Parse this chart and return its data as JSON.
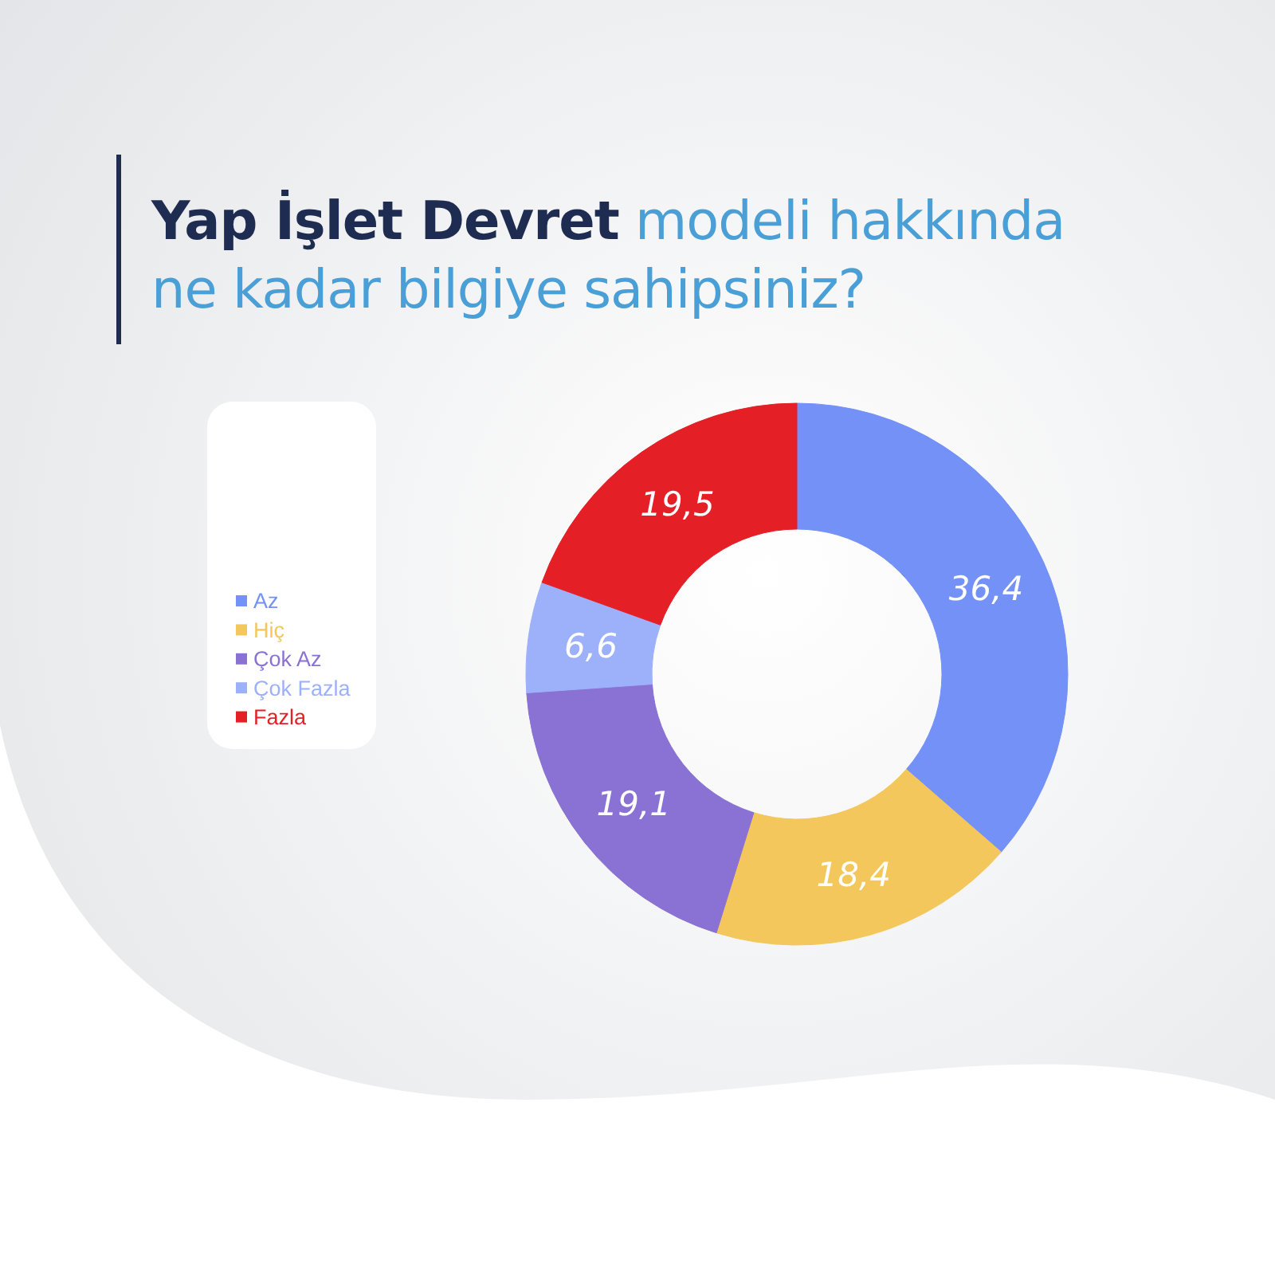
{
  "chart_data": {
    "type": "donut",
    "title": "Yap İşlet Devret modeli hakkında ne kadar bilgiye sahipsiniz?",
    "categories": [
      "Az",
      "Hiç",
      "Çok Az",
      "Çok Fazla",
      "Fazla"
    ],
    "values": [
      36.4,
      18.4,
      19.1,
      6.6,
      19.5
    ],
    "colors": [
      "#7391f7",
      "#f3c75b",
      "#8a72d4",
      "#9db0fa",
      "#e41f26"
    ],
    "value_labels": [
      "36,4",
      "18,4",
      "19,1",
      "6,6",
      "19,5"
    ],
    "legend": "left"
  }
}
